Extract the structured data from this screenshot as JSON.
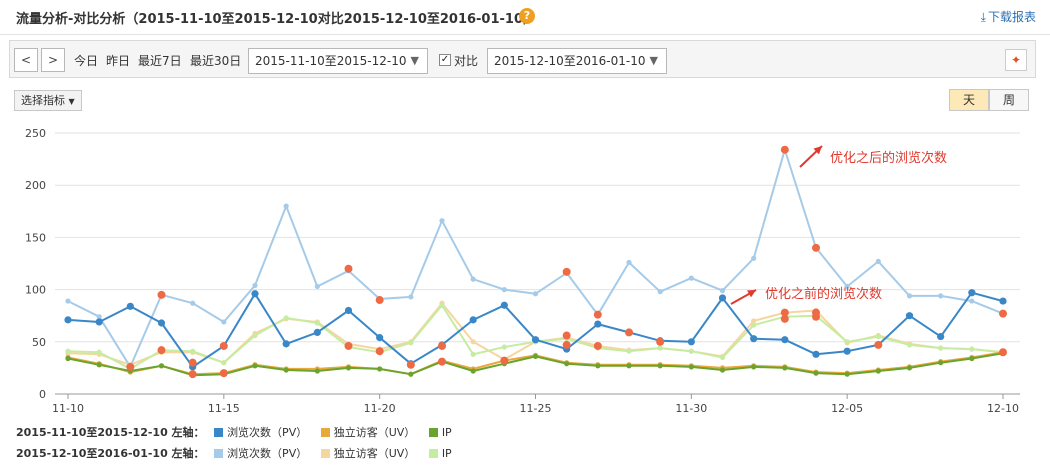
{
  "header": {
    "title": "流量分析-对比分析（2015-11-10至2015-12-10对比2015-12-10至2016-01-10）",
    "help_glyph": "?",
    "download_label": "下载报表"
  },
  "toolbar": {
    "prev_glyph": "<",
    "next_glyph": ">",
    "quick_ranges": [
      "今日",
      "昨日",
      "最近7日",
      "最近30日"
    ],
    "range1": "2015-11-10至2015-12-10",
    "compare_checked": true,
    "compare_label": "对比",
    "range2": "2015-12-10至2016-01-10"
  },
  "controls": {
    "metric_selector": "选择指标",
    "granularity": [
      "天",
      "周"
    ],
    "granularity_active": "天"
  },
  "chart_data": {
    "type": "line",
    "ylim": [
      0,
      250
    ],
    "yticks": [
      0,
      50,
      100,
      150,
      200,
      250
    ],
    "x_ticks": [
      {
        "index": 0,
        "label": "11-10"
      },
      {
        "index": 5,
        "label": "11-15"
      },
      {
        "index": 10,
        "label": "11-20"
      },
      {
        "index": 15,
        "label": "11-25"
      },
      {
        "index": 20,
        "label": "11-30"
      },
      {
        "index": 25,
        "label": "12-05"
      },
      {
        "index": 30,
        "label": "12-10"
      }
    ],
    "grid": true,
    "series": [
      {
        "group": 2,
        "name": "浏览次数（PV）",
        "color": "#a6cbe8",
        "marker": "none",
        "values": [
          89,
          74,
          26,
          95,
          87,
          69,
          104,
          180,
          103,
          118,
          91,
          93,
          166,
          110,
          100,
          96,
          116,
          76,
          126,
          98,
          111,
          99,
          130,
          234,
          140,
          103,
          127,
          94,
          94,
          89,
          77
        ]
      },
      {
        "group": 2,
        "name": "独立访客（UV）",
        "color": "#f7d59e",
        "marker": "none",
        "values": [
          39,
          38,
          28,
          40,
          40,
          30,
          58,
          72,
          69,
          48,
          43,
          50,
          87,
          50,
          33,
          50,
          54,
          46,
          42,
          44,
          41,
          36,
          70,
          78,
          80,
          49,
          56,
          48,
          44,
          43,
          40
        ]
      },
      {
        "group": 2,
        "name": "IP",
        "color": "#c6eca2",
        "marker": "none",
        "values": [
          41,
          40,
          24,
          42,
          41,
          30,
          56,
          73,
          68,
          45,
          40,
          49,
          85,
          38,
          45,
          50,
          53,
          44,
          41,
          44,
          41,
          35,
          66,
          74,
          75,
          50,
          55,
          47,
          44,
          43,
          40
        ]
      },
      {
        "group": 1,
        "name": "浏览次数（PV）",
        "color": "#3a87c8",
        "marker": "dot",
        "values": [
          71,
          69,
          84,
          68,
          26,
          46,
          96,
          48,
          59,
          80,
          54,
          29,
          47,
          71,
          85,
          52,
          43,
          67,
          59,
          51,
          50,
          92,
          53,
          52,
          38,
          41,
          47,
          75,
          55,
          97,
          89
        ]
      },
      {
        "group": 1,
        "name": "独立访客（UV）",
        "color": "#e9a83a",
        "marker": "none",
        "values": [
          35,
          29,
          21,
          27,
          19,
          20,
          28,
          24,
          24,
          26,
          24,
          19,
          32,
          24,
          32,
          37,
          30,
          28,
          28,
          28,
          27,
          25,
          27,
          26,
          21,
          20,
          23,
          26,
          31,
          35,
          40
        ]
      },
      {
        "group": 1,
        "name": "IP",
        "color": "#6aa32e",
        "marker": "none",
        "values": [
          34,
          28,
          22,
          27,
          18,
          19,
          27,
          23,
          22,
          25,
          24,
          19,
          31,
          22,
          29,
          36,
          29,
          27,
          27,
          27,
          26,
          23,
          26,
          25,
          20,
          19,
          22,
          25,
          30,
          34,
          39
        ]
      }
    ],
    "highlight_points": {
      "color": "#ee6a45",
      "points": [
        {
          "i": 2,
          "v": 26
        },
        {
          "i": 3,
          "v": 95
        },
        {
          "i": 3,
          "v": 42
        },
        {
          "i": 4,
          "v": 30
        },
        {
          "i": 4,
          "v": 19
        },
        {
          "i": 5,
          "v": 46
        },
        {
          "i": 5,
          "v": 20
        },
        {
          "i": 9,
          "v": 120
        },
        {
          "i": 9,
          "v": 46
        },
        {
          "i": 10,
          "v": 90
        },
        {
          "i": 10,
          "v": 41
        },
        {
          "i": 11,
          "v": 28
        },
        {
          "i": 12,
          "v": 46
        },
        {
          "i": 12,
          "v": 31
        },
        {
          "i": 14,
          "v": 32
        },
        {
          "i": 16,
          "v": 117
        },
        {
          "i": 16,
          "v": 56
        },
        {
          "i": 16,
          "v": 47
        },
        {
          "i": 17,
          "v": 76
        },
        {
          "i": 17,
          "v": 46
        },
        {
          "i": 18,
          "v": 59
        },
        {
          "i": 19,
          "v": 50
        },
        {
          "i": 23,
          "v": 234
        },
        {
          "i": 23,
          "v": 78
        },
        {
          "i": 23,
          "v": 72
        },
        {
          "i": 24,
          "v": 140
        },
        {
          "i": 24,
          "v": 78
        },
        {
          "i": 24,
          "v": 74
        },
        {
          "i": 26,
          "v": 47
        },
        {
          "i": 30,
          "v": 77
        },
        {
          "i": 30,
          "v": 40
        }
      ]
    },
    "annotations": [
      {
        "text": "优化之后的浏览次数",
        "color": "#e03a2e"
      },
      {
        "text": "优化之前的浏览次数",
        "color": "#e03a2e"
      }
    ]
  },
  "legend": {
    "row1_label": "2015-11-10至2015-12-10 左轴：",
    "row2_label": "2015-12-10至2016-01-10 左轴：",
    "row1_items": [
      {
        "name": "浏览次数（PV）",
        "color": "#3a87c8"
      },
      {
        "name": "独立访客（UV）",
        "color": "#e9a83a"
      },
      {
        "name": "IP",
        "color": "#6aa32e"
      }
    ],
    "row2_items": [
      {
        "name": "浏览次数（PV）",
        "color": "#a6cbe8"
      },
      {
        "name": "独立访客（UV）",
        "color": "#f7d59e"
      },
      {
        "name": "IP",
        "color": "#c6eca2"
      }
    ]
  }
}
